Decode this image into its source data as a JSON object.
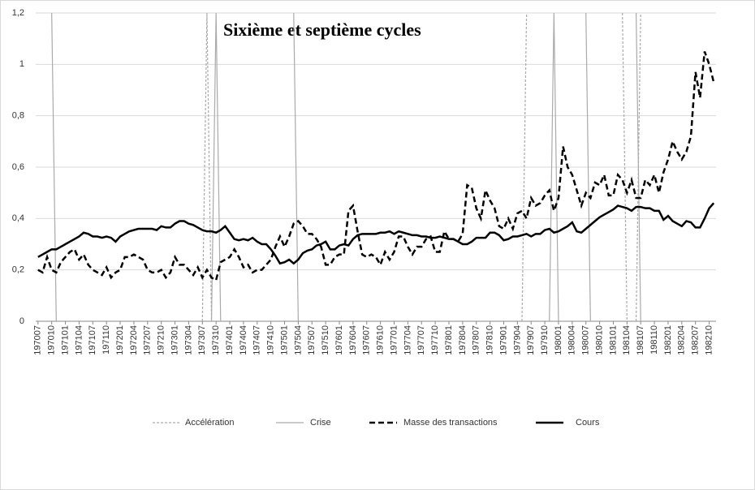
{
  "chart_data": {
    "type": "line",
    "title": "Sixième et septième cycles",
    "categories": [
      "197007",
      null,
      null,
      "197010",
      null,
      null,
      "197101",
      null,
      null,
      "197104",
      null,
      null,
      "197107",
      null,
      null,
      "197110",
      null,
      null,
      "197201",
      null,
      null,
      "197204",
      null,
      null,
      "197207",
      null,
      null,
      "197210",
      null,
      null,
      "197301",
      null,
      null,
      "197304",
      null,
      null,
      "197307",
      null,
      null,
      "197310",
      null,
      null,
      "197401",
      null,
      null,
      "197404",
      null,
      null,
      "197407",
      null,
      null,
      "197410",
      null,
      null,
      "197501",
      null,
      null,
      "197504",
      null,
      null,
      "197507",
      null,
      null,
      "197510",
      null,
      null,
      "197601",
      null,
      null,
      "197604",
      null,
      null,
      "197607",
      null,
      null,
      "197610",
      null,
      null,
      "197701",
      null,
      null,
      "197704",
      null,
      null,
      "197707",
      null,
      null,
      "197710",
      null,
      null,
      "197801",
      null,
      null,
      "197804",
      null,
      null,
      "197807",
      null,
      null,
      "197810",
      null,
      null,
      "197901",
      null,
      null,
      "197904",
      null,
      null,
      "197907",
      null,
      null,
      "197910",
      null,
      null,
      "198001",
      null,
      null,
      "198004",
      null,
      null,
      "198007",
      null,
      null,
      "198010",
      null,
      null,
      "198101",
      null,
      null,
      "198104",
      null,
      null,
      "198107",
      null,
      null,
      "198110",
      null,
      null,
      "198201",
      null,
      null,
      "198204",
      null,
      null,
      "198207",
      null,
      null,
      "198210",
      null
    ],
    "series": [
      {
        "name": "Accélération",
        "color": "#aaaaaa",
        "dash": "dashed",
        "values": [
          null,
          null,
          null,
          null,
          null,
          null,
          null,
          null,
          null,
          null,
          null,
          null,
          null,
          null,
          null,
          null,
          null,
          null,
          null,
          null,
          null,
          null,
          null,
          null,
          null,
          null,
          null,
          null,
          null,
          null,
          null,
          null,
          null,
          null,
          null,
          null,
          0,
          1.2,
          0,
          null,
          null,
          null,
          null,
          null,
          null,
          null,
          null,
          null,
          null,
          null,
          null,
          null,
          null,
          null,
          null,
          null,
          null,
          null,
          null,
          null,
          null,
          null,
          null,
          null,
          null,
          null,
          null,
          null,
          null,
          null,
          null,
          null,
          null,
          null,
          null,
          null,
          null,
          null,
          null,
          null,
          null,
          null,
          null,
          null,
          null,
          null,
          null,
          null,
          null,
          null,
          null,
          null,
          null,
          null,
          null,
          null,
          null,
          null,
          null,
          null,
          null,
          null,
          null,
          null,
          null,
          null,
          0,
          1.2,
          null,
          null,
          null,
          null,
          null,
          null,
          null,
          null,
          null,
          null,
          null,
          null,
          null,
          null,
          null,
          null,
          null,
          null,
          null,
          null,
          1.2,
          0,
          null,
          0,
          1.2,
          null,
          null,
          null,
          null,
          null,
          null,
          null,
          null,
          null,
          null,
          null,
          null,
          null,
          null,
          null,
          null
        ]
      },
      {
        "name": "Crise",
        "color": "#aaaaaa",
        "dash": "solid",
        "values": [
          null,
          null,
          null,
          1.2,
          0,
          null,
          null,
          null,
          null,
          null,
          null,
          null,
          null,
          null,
          null,
          null,
          null,
          null,
          null,
          null,
          null,
          null,
          null,
          null,
          null,
          null,
          null,
          null,
          null,
          null,
          null,
          null,
          null,
          null,
          null,
          null,
          null,
          null,
          0,
          1.2,
          0,
          null,
          null,
          null,
          null,
          null,
          null,
          null,
          null,
          null,
          null,
          null,
          null,
          null,
          null,
          null,
          1.2,
          0,
          null,
          null,
          null,
          null,
          null,
          null,
          null,
          null,
          null,
          null,
          null,
          null,
          null,
          null,
          null,
          null,
          null,
          null,
          null,
          null,
          null,
          null,
          null,
          null,
          null,
          null,
          null,
          null,
          null,
          null,
          null,
          null,
          null,
          null,
          null,
          null,
          null,
          null,
          null,
          null,
          null,
          null,
          null,
          null,
          null,
          null,
          null,
          null,
          null,
          null,
          null,
          null,
          null,
          null,
          0,
          1.2,
          0,
          null,
          null,
          null,
          null,
          null,
          1.2,
          0,
          null,
          null,
          null,
          null,
          null,
          null,
          null,
          null,
          null,
          1.2,
          0,
          null,
          null,
          null,
          null,
          null,
          null,
          null,
          null,
          null,
          null,
          null,
          null,
          null,
          null,
          null,
          null
        ]
      },
      {
        "name": "Masse des transactions",
        "color": "#000000",
        "dash": "dashed",
        "values": [
          0.2,
          0.19,
          0.25,
          0.2,
          0.19,
          0.23,
          0.25,
          0.27,
          0.28,
          0.24,
          0.26,
          0.22,
          0.2,
          0.19,
          0.18,
          0.21,
          0.17,
          0.19,
          0.2,
          0.25,
          0.25,
          0.26,
          0.25,
          0.24,
          0.2,
          0.19,
          0.19,
          0.2,
          0.17,
          0.19,
          0.25,
          0.22,
          0.22,
          0.2,
          0.18,
          0.21,
          0.17,
          0.2,
          0.17,
          0.16,
          0.23,
          0.24,
          0.25,
          0.28,
          0.25,
          0.21,
          0.22,
          0.19,
          0.2,
          0.2,
          0.22,
          0.24,
          0.29,
          0.33,
          0.29,
          0.33,
          0.38,
          0.39,
          0.37,
          0.34,
          0.34,
          0.32,
          0.29,
          0.22,
          0.22,
          0.25,
          0.26,
          0.26,
          0.43,
          0.45,
          0.35,
          0.26,
          0.25,
          0.26,
          0.25,
          0.22,
          0.27,
          0.24,
          0.27,
          0.33,
          0.33,
          0.29,
          0.26,
          0.29,
          0.29,
          0.32,
          0.33,
          0.27,
          0.27,
          0.35,
          0.32,
          0.32,
          0.31,
          0.34,
          0.53,
          0.52,
          0.44,
          0.4,
          0.51,
          0.47,
          0.44,
          0.37,
          0.36,
          0.4,
          0.36,
          0.42,
          0.43,
          0.4,
          0.48,
          0.45,
          0.46,
          0.49,
          0.51,
          0.43,
          0.48,
          0.68,
          0.6,
          0.57,
          0.51,
          0.45,
          0.5,
          0.48,
          0.54,
          0.53,
          0.57,
          0.49,
          0.49,
          0.57,
          0.55,
          0.5,
          0.55,
          0.48,
          0.48,
          0.55,
          0.53,
          0.57,
          0.5,
          0.58,
          0.63,
          0.7,
          0.66,
          0.63,
          0.66,
          0.72,
          0.97,
          0.87,
          1.05,
          1.0,
          0.93
        ]
      },
      {
        "name": "Cours",
        "color": "#000000",
        "dash": "solid",
        "values": [
          0.25,
          0.26,
          0.27,
          0.28,
          0.28,
          0.29,
          0.3,
          0.31,
          0.32,
          0.33,
          0.345,
          0.34,
          0.33,
          0.33,
          0.325,
          0.33,
          0.325,
          0.31,
          0.33,
          0.34,
          0.35,
          0.355,
          0.36,
          0.36,
          0.36,
          0.36,
          0.355,
          0.37,
          0.365,
          0.365,
          0.38,
          0.39,
          0.39,
          0.38,
          0.375,
          0.365,
          0.355,
          0.35,
          0.35,
          0.345,
          0.355,
          0.37,
          0.345,
          0.32,
          0.315,
          0.32,
          0.315,
          0.325,
          0.31,
          0.3,
          0.3,
          0.28,
          0.255,
          0.225,
          0.23,
          0.24,
          0.225,
          0.24,
          0.265,
          0.275,
          0.28,
          0.295,
          0.3,
          0.31,
          0.28,
          0.28,
          0.295,
          0.3,
          0.295,
          0.32,
          0.335,
          0.34,
          0.34,
          0.34,
          0.34,
          0.345,
          0.345,
          0.35,
          0.34,
          0.35,
          0.345,
          0.34,
          0.335,
          0.335,
          0.33,
          0.33,
          0.325,
          0.325,
          0.33,
          0.325,
          0.32,
          0.32,
          0.31,
          0.3,
          0.3,
          0.31,
          0.325,
          0.325,
          0.325,
          0.345,
          0.345,
          0.335,
          0.315,
          0.32,
          0.33,
          0.33,
          0.335,
          0.34,
          0.33,
          0.34,
          0.34,
          0.355,
          0.36,
          0.345,
          0.35,
          0.36,
          0.37,
          0.385,
          0.35,
          0.345,
          0.36,
          0.375,
          0.39,
          0.405,
          0.415,
          0.425,
          0.435,
          0.45,
          0.445,
          0.44,
          0.43,
          0.445,
          0.445,
          0.44,
          0.44,
          0.43,
          0.43,
          0.395,
          0.41,
          0.39,
          0.38,
          0.37,
          0.39,
          0.385,
          0.365,
          0.365,
          0.4,
          0.44,
          0.46
        ]
      }
    ],
    "ylim": [
      0,
      1.2
    ],
    "yticks": [
      0,
      {
        "value": 0.2,
        "label": "0,2"
      },
      {
        "value": 0.4,
        "label": "0,4"
      },
      {
        "value": 0.6,
        "label": "0,6"
      },
      {
        "value": 0.8,
        "label": "0,8"
      },
      1,
      {
        "value": 1.2,
        "label": "1,2"
      }
    ],
    "grid": true,
    "legend": "bottom"
  }
}
